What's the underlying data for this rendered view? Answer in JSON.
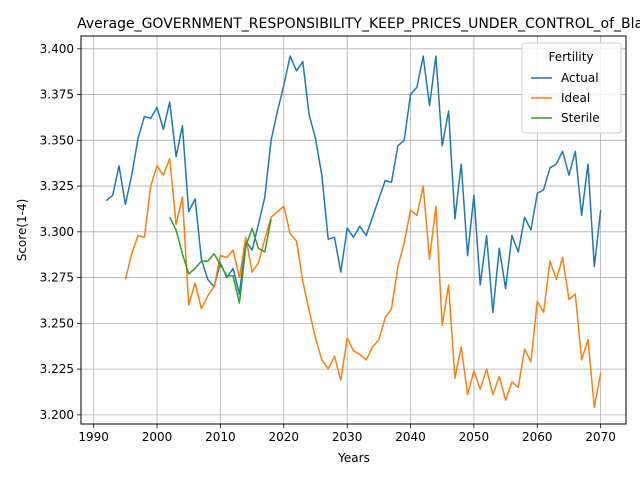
{
  "chart_data": {
    "type": "line",
    "title": "Average_GOVERNMENT_RESPONSIBILITY_KEEP_PRICES_UNDER_CONTROL_of_Black",
    "xlabel": "Years",
    "ylabel": "Score(1-4)",
    "xlim": [
      1988,
      2074
    ],
    "ylim": [
      3.195,
      3.407
    ],
    "xticks": [
      1990,
      2000,
      2010,
      2020,
      2030,
      2040,
      2050,
      2060,
      2070
    ],
    "yticks": [
      3.2,
      3.225,
      3.25,
      3.275,
      3.3,
      3.325,
      3.35,
      3.375,
      3.4
    ],
    "grid": true,
    "legend": {
      "title": "Fertility",
      "position": "top-right"
    },
    "series": [
      {
        "name": "Actual",
        "color": "#1f77b4",
        "x": [
          1992,
          1993,
          1994,
          1995,
          1996,
          1997,
          1998,
          1999,
          2000,
          2001,
          2002,
          2003,
          2004,
          2005,
          2006,
          2007,
          2008,
          2009,
          2010,
          2011,
          2012,
          2013,
          2014,
          2015,
          2016,
          2017,
          2018,
          2019,
          2020,
          2021,
          2022,
          2023,
          2024,
          2025,
          2026,
          2027,
          2028,
          2029,
          2030,
          2031,
          2032,
          2033,
          2034,
          2035,
          2036,
          2037,
          2038,
          2039,
          2040,
          2041,
          2042,
          2043,
          2044,
          2045,
          2046,
          2047,
          2048,
          2049,
          2050,
          2051,
          2052,
          2053,
          2054,
          2055,
          2056,
          2057,
          2058,
          2059,
          2060,
          2061,
          2062,
          2063,
          2064,
          2065,
          2066,
          2067,
          2068,
          2069,
          2070
        ],
        "values": [
          3.317,
          3.32,
          3.336,
          3.315,
          3.331,
          3.351,
          3.363,
          3.362,
          3.368,
          3.356,
          3.371,
          3.341,
          3.358,
          3.311,
          3.318,
          3.285,
          3.274,
          3.27,
          3.283,
          3.275,
          3.28,
          3.266,
          3.295,
          3.29,
          3.304,
          3.319,
          3.35,
          3.366,
          3.38,
          3.396,
          3.388,
          3.393,
          3.364,
          3.351,
          3.331,
          3.296,
          3.297,
          3.278,
          3.302,
          3.297,
          3.303,
          3.298,
          3.308,
          3.318,
          3.328,
          3.327,
          3.347,
          3.35,
          3.375,
          3.379,
          3.396,
          3.369,
          3.396,
          3.347,
          3.366,
          3.307,
          3.337,
          3.287,
          3.32,
          3.271,
          3.298,
          3.256,
          3.291,
          3.269,
          3.298,
          3.289,
          3.308,
          3.301,
          3.321,
          3.323,
          3.335,
          3.337,
          3.344,
          3.331,
          3.344,
          3.309,
          3.337,
          3.281,
          3.312
        ]
      },
      {
        "name": "Ideal",
        "color": "#ff7f0e",
        "x": [
          1995,
          1996,
          1997,
          1998,
          1999,
          2000,
          2001,
          2002,
          2003,
          2004,
          2005,
          2006,
          2007,
          2008,
          2009,
          2010,
          2011,
          2012,
          2013,
          2014,
          2015,
          2016,
          2017,
          2018,
          2019,
          2020,
          2021,
          2022,
          2023,
          2024,
          2025,
          2026,
          2027,
          2028,
          2029,
          2030,
          2031,
          2032,
          2033,
          2034,
          2035,
          2036,
          2037,
          2038,
          2039,
          2040,
          2041,
          2042,
          2043,
          2044,
          2045,
          2046,
          2047,
          2048,
          2049,
          2050,
          2051,
          2052,
          2053,
          2054,
          2055,
          2056,
          2057,
          2058,
          2059,
          2060,
          2061,
          2062,
          2063,
          2064,
          2065,
          2066,
          2067,
          2068,
          2069,
          2070
        ],
        "values": [
          3.274,
          3.288,
          3.298,
          3.297,
          3.325,
          3.336,
          3.331,
          3.34,
          3.304,
          3.319,
          3.26,
          3.272,
          3.258,
          3.265,
          3.27,
          3.287,
          3.286,
          3.29,
          3.275,
          3.297,
          3.278,
          3.283,
          3.296,
          3.308,
          3.311,
          3.314,
          3.299,
          3.295,
          3.273,
          3.257,
          3.242,
          3.23,
          3.225,
          3.232,
          3.219,
          3.242,
          3.235,
          3.233,
          3.23,
          3.237,
          3.241,
          3.253,
          3.258,
          3.281,
          3.294,
          3.312,
          3.309,
          3.325,
          3.285,
          3.314,
          3.249,
          3.271,
          3.22,
          3.237,
          3.211,
          3.224,
          3.214,
          3.225,
          3.211,
          3.221,
          3.208,
          3.218,
          3.215,
          3.236,
          3.229,
          3.262,
          3.256,
          3.284,
          3.274,
          3.286,
          3.263,
          3.266,
          3.23,
          3.241,
          3.204,
          3.223
        ]
      },
      {
        "name": "Sterile",
        "color": "#2ca02c",
        "x": [
          2002,
          2003,
          2004,
          2005,
          2006,
          2007,
          2008,
          2009,
          2010,
          2011,
          2012,
          2013,
          2014,
          2015,
          2016,
          2017,
          2018
        ],
        "values": [
          3.308,
          3.301,
          3.288,
          3.277,
          3.28,
          3.284,
          3.284,
          3.288,
          3.282,
          3.276,
          3.276,
          3.261,
          3.292,
          3.302,
          3.291,
          3.289,
          3.307
        ]
      }
    ]
  }
}
